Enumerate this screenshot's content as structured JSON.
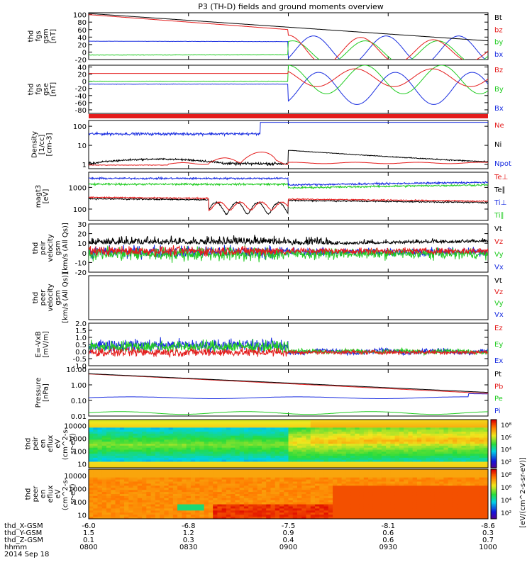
{
  "title": "P3 (TH-D) fields and ground moments overview",
  "colors": {
    "black": "#000000",
    "red": "#e41c1c",
    "green": "#22cc22",
    "blue": "#1a2ee0"
  },
  "chart_data": [
    {
      "type": "line",
      "ylabel": [
        "thd",
        "fgs",
        "gsm",
        "[nT]"
      ],
      "yticks": [
        -20,
        0,
        20,
        40,
        60,
        80,
        100
      ],
      "ylim": [
        -20,
        105
      ],
      "series": [
        {
          "name": "Bt",
          "color": "#000000",
          "kind": "bt"
        },
        {
          "name": "bz",
          "color": "#e41c1c",
          "kind": "bz"
        },
        {
          "name": "by",
          "color": "#22cc22",
          "kind": "by"
        },
        {
          "name": "bx",
          "color": "#1a2ee0",
          "kind": "bx"
        }
      ]
    },
    {
      "type": "line",
      "ylabel": [
        "thd",
        "fgs",
        "gse",
        "[nT]"
      ],
      "yticks": [
        -80,
        -60,
        -40,
        -20,
        0,
        20,
        40
      ],
      "ylim": [
        -90,
        45
      ],
      "series": [
        {
          "name": "Bz",
          "color": "#e41c1c",
          "kind": "Bz"
        },
        {
          "name": "By",
          "color": "#22cc22",
          "kind": "By"
        },
        {
          "name": "Bx",
          "color": "#1a2ee0",
          "kind": "Bx"
        }
      ]
    },
    {
      "type": "line",
      "ylabel": [
        "Density",
        "[1/cc]",
        "[cm-3]"
      ],
      "yticks": [
        1,
        10,
        100
      ],
      "yticklabels": [
        "1",
        "10",
        "100"
      ],
      "ylim": [
        0.6,
        200
      ],
      "scale": "log",
      "series": [
        {
          "name": "Ne",
          "color": "#e41c1c",
          "kind": "ne"
        },
        {
          "name": "Ni",
          "color": "#000000",
          "kind": "ni"
        },
        {
          "name": "Npot",
          "color": "#1a2ee0",
          "kind": "npot"
        }
      ]
    },
    {
      "type": "line",
      "ylabel": [
        "magt3",
        "[eV]"
      ],
      "yticks": [
        100,
        1000
      ],
      "yticklabels": [
        "100",
        "1000"
      ],
      "ylim": [
        30,
        5000
      ],
      "scale": "log",
      "series": [
        {
          "name": "Te⊥",
          "color": "#e41c1c",
          "kind": "teperp"
        },
        {
          "name": "Te∥",
          "color": "#000000",
          "kind": "tepar"
        },
        {
          "name": "Ti⊥",
          "color": "#1a2ee0",
          "kind": "tiperp"
        },
        {
          "name": "Ti∥",
          "color": "#22cc22",
          "kind": "tipar"
        }
      ]
    },
    {
      "type": "line",
      "ylabel": [
        "thd",
        "peir",
        "velocity",
        "gsm",
        "[km/s (All Qs)]"
      ],
      "yticks": [
        -20,
        -10,
        0,
        10,
        20,
        30
      ],
      "ylim": [
        -20,
        30
      ],
      "series": [
        {
          "name": "Vt",
          "color": "#000000",
          "kind": "vt"
        },
        {
          "name": "Vz",
          "color": "#e41c1c",
          "kind": "vz"
        },
        {
          "name": "Vy",
          "color": "#22cc22",
          "kind": "vy"
        },
        {
          "name": "Vx",
          "color": "#1a2ee0",
          "kind": "vx"
        }
      ]
    },
    {
      "type": "line",
      "ylabel": [
        "thd",
        "peer",
        "velocity",
        "gsm",
        "[km/s (All Qs)]"
      ],
      "yticks": [],
      "ylim": [
        0,
        1
      ],
      "series": [
        {
          "name": "Vt",
          "color": "#000000",
          "kind": "none"
        },
        {
          "name": "Vz",
          "color": "#e41c1c",
          "kind": "none"
        },
        {
          "name": "Vy",
          "color": "#22cc22",
          "kind": "none"
        },
        {
          "name": "Vx",
          "color": "#1a2ee0",
          "kind": "none"
        }
      ]
    },
    {
      "type": "line",
      "ylabel": [
        "E=-VxB",
        "[mV/m]"
      ],
      "yticks": [
        -1.0,
        -0.5,
        0.0,
        0.5,
        1.0,
        1.5,
        2.0
      ],
      "yticklabels": [
        "-1.0",
        "-0.5",
        "0.0",
        "0.5",
        "1.0",
        "1.5",
        "2.0"
      ],
      "ylim": [
        -1,
        2
      ],
      "series": [
        {
          "name": "Ez",
          "color": "#e41c1c",
          "kind": "ez"
        },
        {
          "name": "Ey",
          "color": "#22cc22",
          "kind": "ey"
        },
        {
          "name": "Ex",
          "color": "#1a2ee0",
          "kind": "ex"
        }
      ]
    },
    {
      "type": "line",
      "ylabel": [
        "Pressure",
        "[nPa]"
      ],
      "yticks": [
        0.01,
        0.1,
        1,
        10
      ],
      "yticklabels": [
        "0.01",
        "0.10",
        "1.00",
        "10.00"
      ],
      "ylim": [
        0.01,
        10
      ],
      "scale": "log",
      "series": [
        {
          "name": "Pt",
          "color": "#000000",
          "kind": "pt"
        },
        {
          "name": "Pb",
          "color": "#e41c1c",
          "kind": "pb"
        },
        {
          "name": "Pe",
          "color": "#22cc22",
          "kind": "pe"
        },
        {
          "name": "Pi",
          "color": "#1a2ee0",
          "kind": "pi"
        }
      ]
    },
    {
      "type": "heatmap",
      "ylabel": [
        "thd",
        "peir",
        "en",
        "eflux",
        "eV",
        "(cm^2-s-",
        "sr-eV)"
      ],
      "yticks": [
        10,
        100,
        1000,
        10000
      ],
      "yticklabels": [
        "10",
        "100",
        "1000",
        "10000"
      ],
      "ylim": [
        5,
        30000
      ],
      "scale": "log",
      "colorbar": {
        "label": "[eV/(cm^2-s-sr-eV)]",
        "ticks": [
          "10²",
          "10⁴",
          "10⁶",
          "10⁸"
        ]
      }
    },
    {
      "type": "heatmap",
      "ylabel": [
        "thd",
        "peer",
        "en",
        "eflux",
        "eV",
        "(cm^2-s-",
        "sr-eV)"
      ],
      "yticks": [
        10,
        100,
        1000,
        10000
      ],
      "yticklabels": [
        "10",
        "100",
        "1000",
        "10000"
      ],
      "ylim": [
        5,
        30000
      ],
      "scale": "log",
      "colorbar": {
        "label": "[eV/(cm^2-s-sr-eV)]",
        "ticks": [
          "10²",
          "10⁴",
          "10⁶",
          "10⁸"
        ]
      }
    }
  ],
  "colorbar_label": "[eV/(cm^2-s-sr-eV)]",
  "xaxis": {
    "rows": [
      {
        "label": "thd_X-GSM",
        "values": [
          "-6.0",
          "-6.8",
          "-7.5",
          "-8.1",
          "-8.6"
        ]
      },
      {
        "label": "thd_Y-GSM",
        "values": [
          "1.5",
          "1.2",
          "0.9",
          "0.6",
          "0.3"
        ]
      },
      {
        "label": "thd_Z-GSM",
        "values": [
          "0.1",
          "0.3",
          "0.4",
          "0.6",
          "0.7"
        ]
      },
      {
        "label": "hhmm",
        "values": [
          "0800",
          "0830",
          "0900",
          "0930",
          "1000"
        ]
      }
    ],
    "date": "2014 Sep 18",
    "range": [
      "0800",
      "1000"
    ]
  }
}
